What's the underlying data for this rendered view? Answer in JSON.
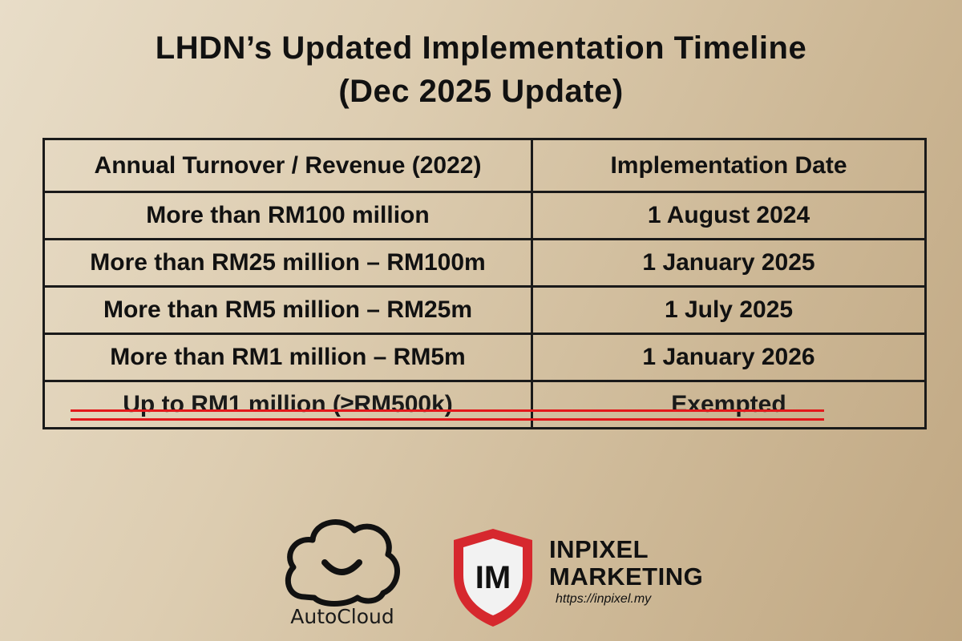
{
  "title": {
    "line1": "LHDN’s Updated Implementation Timeline",
    "line2": "(Dec 2025 Update)"
  },
  "table": {
    "headers": [
      "Annual Turnover / Revenue (2022)",
      "Implementation Date"
    ],
    "rows": [
      [
        "More than RM100 million",
        "1 August 2024"
      ],
      [
        "More than RM25 million – RM100m",
        "1 January 2025"
      ],
      [
        "More than RM5 million – RM25m",
        "1 July 2025"
      ],
      [
        "More than RM1 million – RM5m",
        "1 January 2026"
      ],
      [
        "Up to RM1 million (≥RM500k)",
        "Exempted"
      ]
    ],
    "struck_row_index": 4,
    "strike_color": "#e3171b"
  },
  "logos": {
    "autocloud": {
      "label": "AutoCloud",
      "icon": "cloud-smile-icon"
    },
    "inpixel": {
      "monogram": "IM",
      "name_line1": "INPIXEL",
      "name_line2": "MARKETING",
      "url": "https://inpixel.my",
      "shield_color": "#d6282e",
      "icon": "shield-icon"
    }
  }
}
